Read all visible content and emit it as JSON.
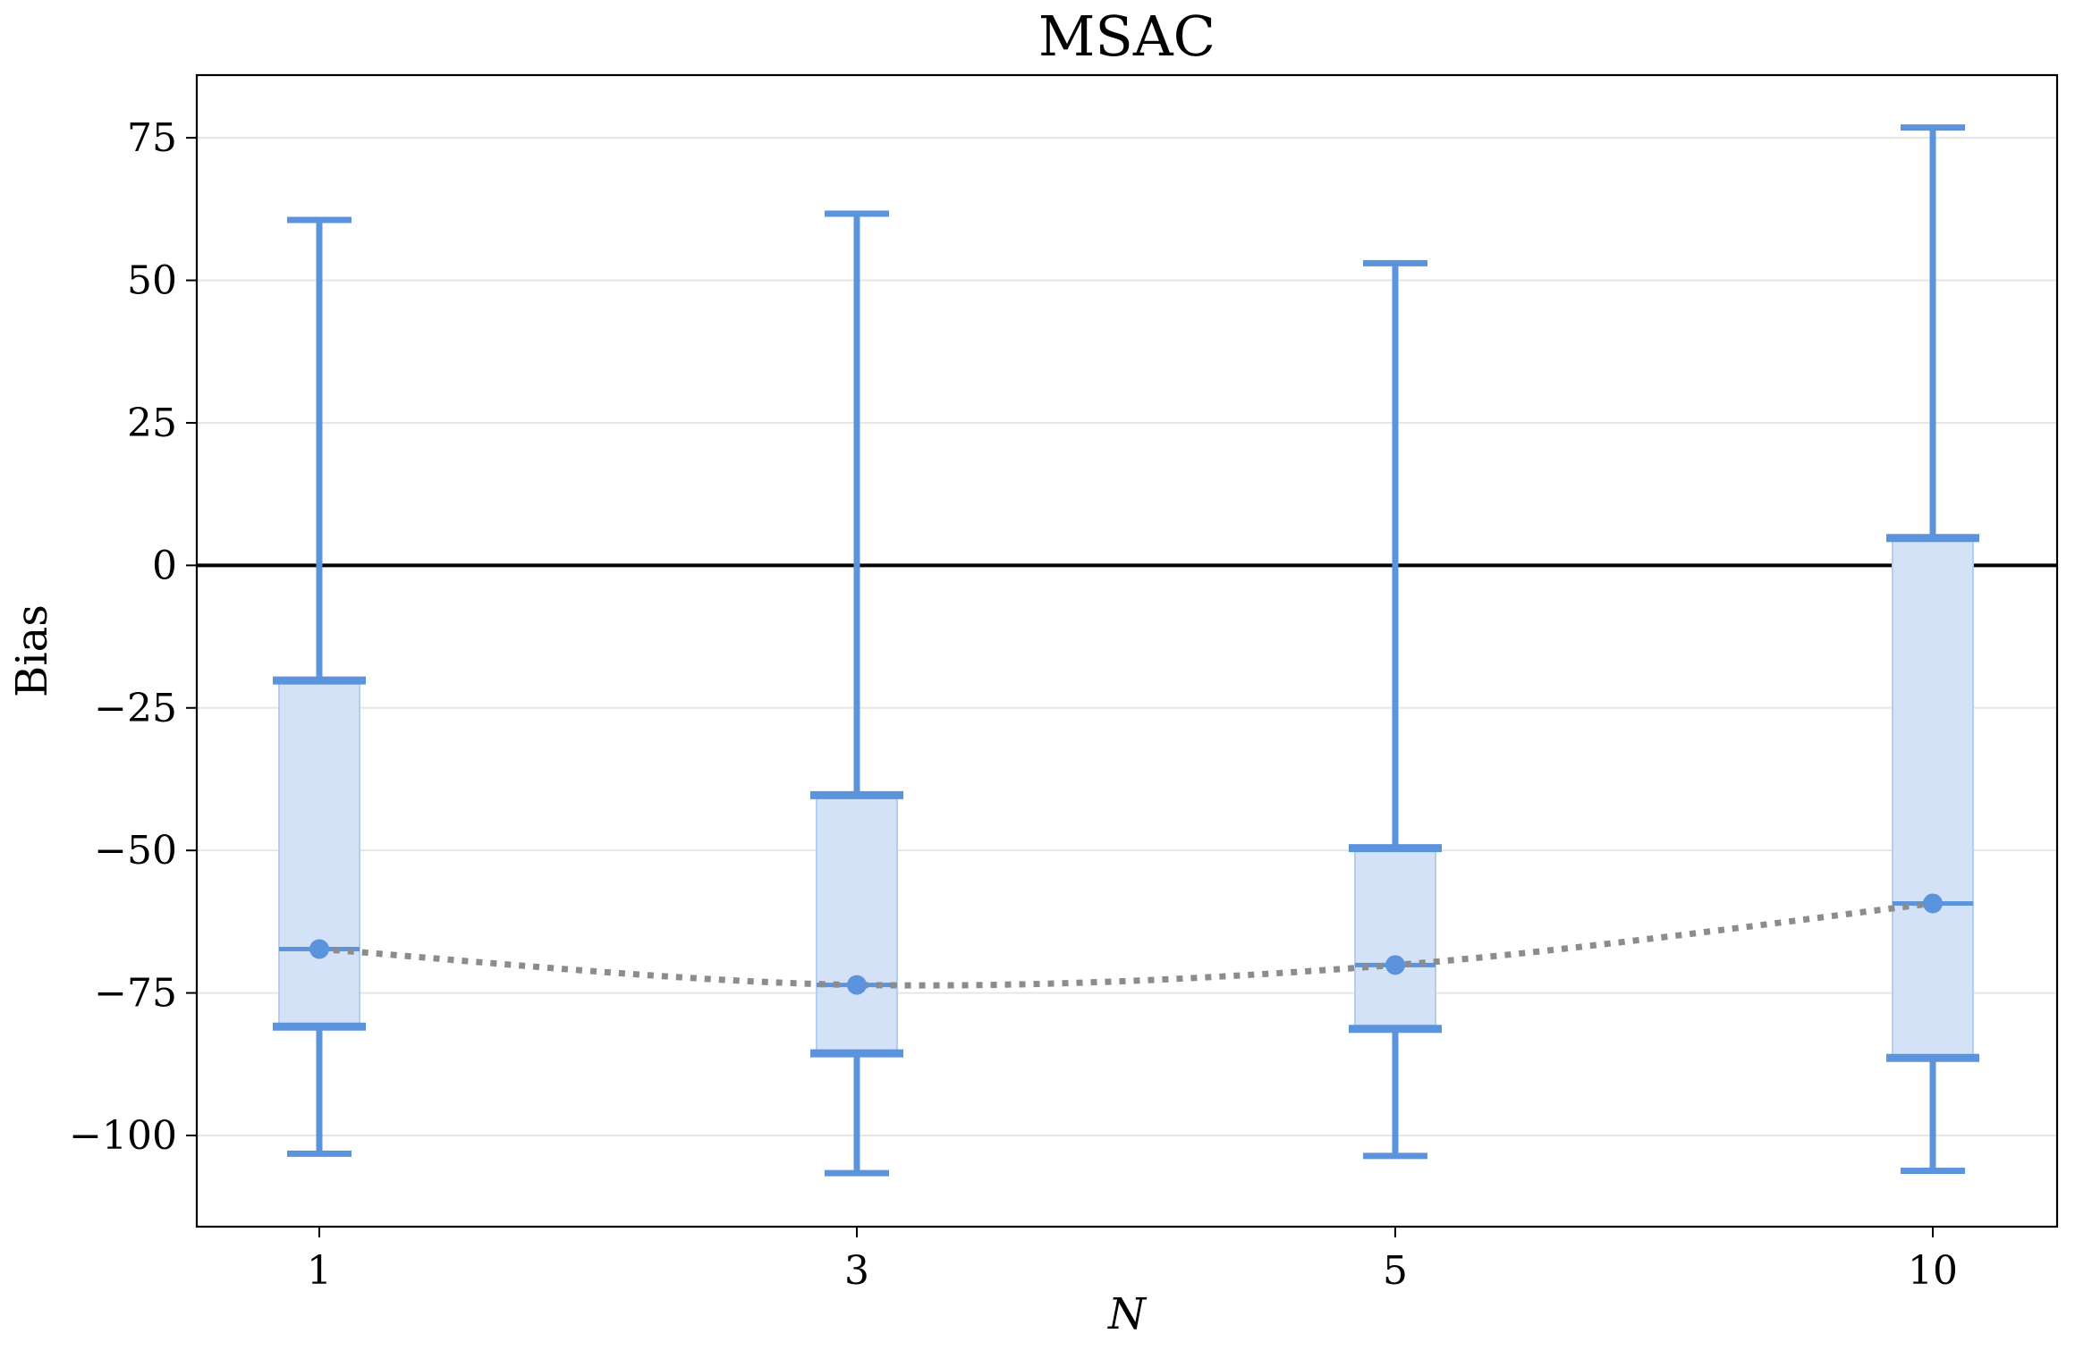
{
  "chart_data": {
    "type": "box",
    "title": "MSAC",
    "xlabel": "N",
    "ylabel": "Bias",
    "categories": [
      "1",
      "3",
      "5",
      "10"
    ],
    "ylim": [
      -116,
      86
    ],
    "yticks": [
      -100,
      -75,
      -50,
      -25,
      0,
      25,
      50,
      75
    ],
    "ytick_labels": [
      "−100",
      "−75",
      "−50",
      "−25",
      "0",
      "25",
      "50",
      "75"
    ],
    "grid": "horizontal",
    "reference_line": 0,
    "series": [
      {
        "whisker_high": [
          60.6,
          61.7,
          53.0,
          76.8
        ],
        "q3": [
          -20.2,
          -40.3,
          -49.6,
          4.8
        ],
        "median": [
          -67.3,
          -73.6,
          -70.1,
          -59.3
        ],
        "q1": [
          -80.9,
          -85.6,
          -81.3,
          -86.4
        ],
        "whisker_low": [
          -103.2,
          -106.6,
          -103.6,
          -106.2
        ],
        "mean": [
          -67.3,
          -73.6,
          -70.1,
          -59.3
        ]
      }
    ],
    "colors": {
      "box_fill": "#d3e2f7",
      "box_stroke": "#b5cdef",
      "whisker": "#5b93dd",
      "mean_line": "#8c8c8c",
      "reference": "#000000",
      "grid": "#e6e6e6"
    }
  }
}
